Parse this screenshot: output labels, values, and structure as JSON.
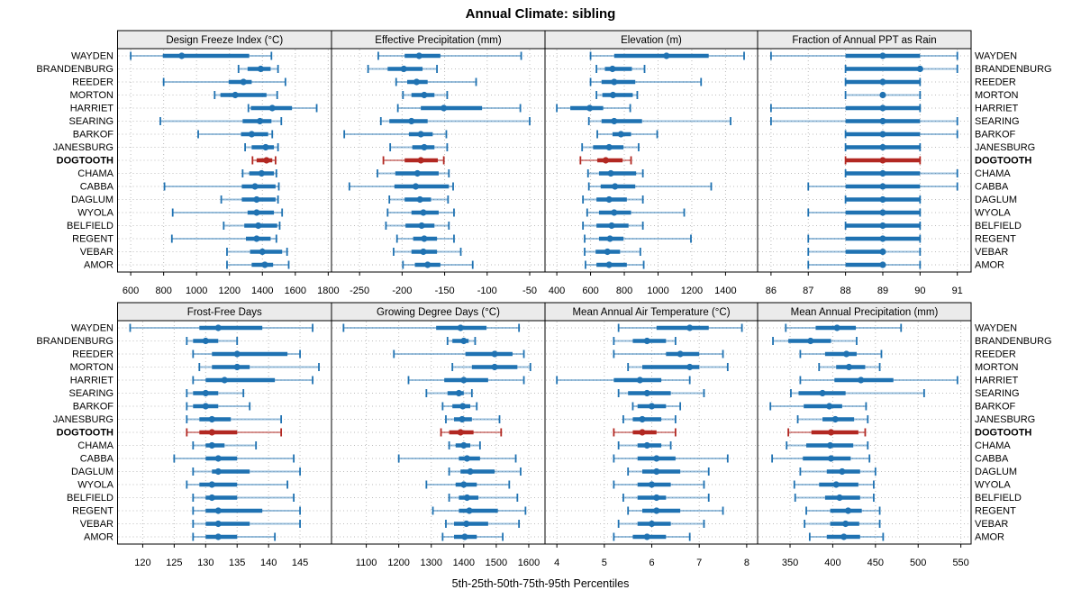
{
  "title": "Annual Climate: sibling",
  "footer": "5th-25th-50th-75th-95th Percentiles",
  "colors": {
    "series": "#1f72b2",
    "series_light": "rgba(31,114,178,0.45)",
    "highlight": "#b22822",
    "highlight_light": "rgba(178,40,34,0.5)",
    "strip_bg": "#ebebeb",
    "panel_border": "#000000",
    "grid": "#bdbdbd",
    "text": "#000000"
  },
  "chart_data": {
    "type": "dotplot",
    "subtype": "trellis-percentile-whiskers",
    "layout": {
      "rows": 2,
      "cols": 4,
      "grid": "dotted",
      "station_labels": "both-sides"
    },
    "percentiles": [
      "5th",
      "25th",
      "50th",
      "75th",
      "95th"
    ],
    "highlight_station": "DOGTOOTH",
    "stations": [
      "WAYDEN",
      "BRANDENBURG",
      "REEDER",
      "MORTON",
      "HARRIET",
      "SEARING",
      "BARKOF",
      "JANESBURG",
      "DOGTOOTH",
      "CHAMA",
      "CABBA",
      "DAGLUM",
      "WYOLA",
      "BELFIELD",
      "REGENT",
      "VEBAR",
      "AMOR"
    ],
    "panels": [
      {
        "title": "Design Freeze Index (°C)",
        "row": 0,
        "col": 0,
        "xlim": [
          520,
          1820
        ],
        "ticks": [
          600,
          800,
          1000,
          1200,
          1400,
          1600,
          1800
        ],
        "values": [
          [
            600,
            795,
            910,
            1320,
            1455
          ],
          [
            1255,
            1310,
            1390,
            1450,
            1495
          ],
          [
            800,
            1195,
            1285,
            1335,
            1540
          ],
          [
            1110,
            1145,
            1235,
            1425,
            1490
          ],
          [
            1315,
            1330,
            1460,
            1580,
            1730
          ],
          [
            780,
            1280,
            1385,
            1455,
            1515
          ],
          [
            1010,
            1270,
            1335,
            1435,
            1460
          ],
          [
            1295,
            1335,
            1420,
            1470,
            1495
          ],
          [
            1340,
            1365,
            1425,
            1460,
            1480
          ],
          [
            1280,
            1320,
            1395,
            1470,
            1485
          ],
          [
            805,
            1275,
            1355,
            1480,
            1500
          ],
          [
            1150,
            1275,
            1365,
            1480,
            1495
          ],
          [
            855,
            1310,
            1365,
            1470,
            1520
          ],
          [
            1165,
            1290,
            1375,
            1490,
            1505
          ],
          [
            850,
            1300,
            1365,
            1450,
            1485
          ],
          [
            1185,
            1325,
            1400,
            1520,
            1550
          ],
          [
            1185,
            1335,
            1415,
            1465,
            1560
          ]
        ]
      },
      {
        "title": "Effective Precipitation (mm)",
        "row": 0,
        "col": 1,
        "xlim": [
          -283,
          -32
        ],
        "ticks": [
          -250,
          -200,
          -150,
          -100,
          -50
        ],
        "values": [
          [
            -228,
            -197,
            -180,
            -155,
            -60
          ],
          [
            -240,
            -217,
            -198,
            -176,
            -159
          ],
          [
            -207,
            -194,
            -183,
            -170,
            -113
          ],
          [
            -199,
            -189,
            -174,
            -162,
            -147
          ],
          [
            -205,
            -178,
            -151,
            -106,
            -61
          ],
          [
            -225,
            -215,
            -189,
            -170,
            -50
          ],
          [
            -268,
            -192,
            -178,
            -164,
            -148
          ],
          [
            -214,
            -188,
            -174,
            -162,
            -147
          ],
          [
            -222,
            -197,
            -178,
            -158,
            -151
          ],
          [
            -229,
            -208,
            -182,
            -157,
            -145
          ],
          [
            -262,
            -209,
            -184,
            -145,
            -140
          ],
          [
            -215,
            -197,
            -179,
            -166,
            -146
          ],
          [
            -217,
            -189,
            -175,
            -157,
            -139
          ],
          [
            -219,
            -196,
            -177,
            -162,
            -145
          ],
          [
            -206,
            -187,
            -174,
            -159,
            -139
          ],
          [
            -210,
            -189,
            -175,
            -159,
            -131
          ],
          [
            -199,
            -185,
            -170,
            -155,
            -117
          ]
        ]
      },
      {
        "title": "Elevation (m)",
        "row": 0,
        "col": 2,
        "xlim": [
          330,
          1590
        ],
        "ticks": [
          400,
          600,
          800,
          1000,
          1200,
          1400
        ],
        "values": [
          [
            600,
            740,
            1050,
            1300,
            1510
          ],
          [
            635,
            685,
            730,
            845,
            920
          ],
          [
            600,
            665,
            740,
            865,
            1255
          ],
          [
            635,
            670,
            733,
            850,
            877
          ],
          [
            400,
            480,
            595,
            675,
            835
          ],
          [
            590,
            665,
            740,
            905,
            1430
          ],
          [
            640,
            730,
            780,
            840,
            995
          ],
          [
            550,
            615,
            710,
            795,
            885
          ],
          [
            540,
            640,
            690,
            790,
            840
          ],
          [
            585,
            650,
            720,
            870,
            910
          ],
          [
            590,
            660,
            745,
            865,
            1315
          ],
          [
            555,
            635,
            710,
            815,
            910
          ],
          [
            580,
            650,
            740,
            840,
            1155
          ],
          [
            555,
            635,
            725,
            825,
            910
          ],
          [
            565,
            650,
            715,
            795,
            1195
          ],
          [
            565,
            630,
            700,
            775,
            895
          ],
          [
            570,
            635,
            710,
            815,
            915
          ]
        ]
      },
      {
        "title": "Fraction of Annual PPT as Rain",
        "row": 0,
        "col": 3,
        "xlim": [
          85.64,
          91.37
        ],
        "ticks": [
          86,
          87,
          88,
          89,
          90,
          91
        ],
        "values": [
          [
            86,
            88,
            89,
            90,
            91
          ],
          [
            88,
            88,
            90,
            90,
            91
          ],
          [
            88,
            88,
            89,
            90,
            90
          ],
          [
            88,
            89,
            89,
            89,
            90
          ],
          [
            86,
            88,
            89,
            90,
            90
          ],
          [
            86,
            88,
            89,
            90,
            91
          ],
          [
            88,
            88,
            89,
            90,
            91
          ],
          [
            88,
            88,
            89,
            90,
            90
          ],
          [
            88,
            88,
            89,
            90,
            90
          ],
          [
            88,
            88,
            89,
            90,
            91
          ],
          [
            87,
            88,
            89,
            90,
            91
          ],
          [
            88,
            88,
            89,
            90,
            90
          ],
          [
            87,
            88,
            89,
            90,
            90
          ],
          [
            88,
            88,
            89,
            90,
            90
          ],
          [
            87,
            88,
            89,
            90,
            90
          ],
          [
            87,
            88,
            89,
            89,
            90
          ],
          [
            87,
            88,
            89,
            89,
            90
          ]
        ]
      },
      {
        "title": "Frost-Free Days",
        "row": 1,
        "col": 0,
        "xlim": [
          116,
          150
        ],
        "ticks": [
          120,
          125,
          130,
          135,
          140,
          145
        ],
        "values": [
          [
            118,
            129,
            132,
            139,
            147
          ],
          [
            127,
            128,
            130,
            132,
            135
          ],
          [
            128,
            131,
            135,
            143,
            145
          ],
          [
            129,
            131,
            135,
            137,
            148
          ],
          [
            128,
            130,
            133,
            141,
            147
          ],
          [
            127,
            128,
            130,
            132,
            136
          ],
          [
            127,
            128,
            130,
            132,
            137
          ],
          [
            127,
            129,
            131,
            134,
            142
          ],
          [
            127,
            129,
            131,
            135,
            142
          ],
          [
            128,
            130,
            131,
            133,
            138
          ],
          [
            125,
            130,
            132,
            135,
            144
          ],
          [
            128,
            131,
            132,
            137,
            145
          ],
          [
            127,
            129,
            131,
            135,
            143
          ],
          [
            128,
            130,
            131,
            135,
            144
          ],
          [
            128,
            130,
            132,
            139,
            145
          ],
          [
            128,
            130,
            132,
            137,
            145
          ],
          [
            128,
            130,
            132,
            135,
            141
          ]
        ]
      },
      {
        "title": "Growing Degree Days (°C)",
        "row": 1,
        "col": 1,
        "xlim": [
          993,
          1650
        ],
        "ticks": [
          1100,
          1200,
          1300,
          1400,
          1500,
          1600
        ],
        "values": [
          [
            1030,
            1315,
            1390,
            1470,
            1570
          ],
          [
            1350,
            1365,
            1400,
            1415,
            1435
          ],
          [
            1185,
            1405,
            1495,
            1550,
            1585
          ],
          [
            1365,
            1425,
            1495,
            1565,
            1605
          ],
          [
            1230,
            1340,
            1400,
            1475,
            1585
          ],
          [
            1285,
            1350,
            1385,
            1400,
            1425
          ],
          [
            1335,
            1365,
            1397,
            1420,
            1440
          ],
          [
            1345,
            1370,
            1395,
            1425,
            1510
          ],
          [
            1330,
            1355,
            1390,
            1430,
            1515
          ],
          [
            1355,
            1375,
            1400,
            1420,
            1450
          ],
          [
            1200,
            1385,
            1410,
            1450,
            1560
          ],
          [
            1355,
            1390,
            1420,
            1495,
            1575
          ],
          [
            1285,
            1375,
            1400,
            1440,
            1540
          ],
          [
            1355,
            1385,
            1410,
            1445,
            1565
          ],
          [
            1305,
            1385,
            1417,
            1505,
            1590
          ],
          [
            1345,
            1370,
            1408,
            1475,
            1570
          ],
          [
            1335,
            1370,
            1403,
            1440,
            1520
          ]
        ]
      },
      {
        "title": "Mean Annual Air Temperature (°C)",
        "row": 1,
        "col": 2,
        "xlim": [
          3.75,
          8.23
        ],
        "ticks": [
          4,
          5,
          6,
          7,
          8
        ],
        "values": [
          [
            5.3,
            6.1,
            6.8,
            7.2,
            7.9
          ],
          [
            5.2,
            5.6,
            5.9,
            6.3,
            6.5
          ],
          [
            5.2,
            6.3,
            6.6,
            7.0,
            7.5
          ],
          [
            5.5,
            5.8,
            6.8,
            7.0,
            7.6
          ],
          [
            4.0,
            5.2,
            5.75,
            6.2,
            6.8
          ],
          [
            5.3,
            5.5,
            5.9,
            6.4,
            7.1
          ],
          [
            5.6,
            5.7,
            6.0,
            6.3,
            6.6
          ],
          [
            5.4,
            5.6,
            5.8,
            6.2,
            6.5
          ],
          [
            5.2,
            5.6,
            5.8,
            6.1,
            6.5
          ],
          [
            5.3,
            5.7,
            5.9,
            6.2,
            6.4
          ],
          [
            5.2,
            5.7,
            6.1,
            6.5,
            7.6
          ],
          [
            5.5,
            5.8,
            6.1,
            6.6,
            7.2
          ],
          [
            5.2,
            5.7,
            6.0,
            6.4,
            7.1
          ],
          [
            5.4,
            5.7,
            6.1,
            6.3,
            7.2
          ],
          [
            5.5,
            5.8,
            6.1,
            6.6,
            7.5
          ],
          [
            5.3,
            5.7,
            6.0,
            6.4,
            7.1
          ],
          [
            5.2,
            5.6,
            5.9,
            6.3,
            6.8
          ]
        ]
      },
      {
        "title": "Mean Annual Precipitation (mm)",
        "row": 1,
        "col": 3,
        "xlim": [
          312,
          562
        ],
        "ticks": [
          350,
          400,
          450,
          500,
          550
        ],
        "values": [
          [
            345,
            380,
            405,
            427,
            480
          ],
          [
            330,
            348,
            374,
            398,
            428
          ],
          [
            362,
            391,
            416,
            428,
            457
          ],
          [
            384,
            404,
            419,
            438,
            455
          ],
          [
            362,
            402,
            433,
            471,
            546
          ],
          [
            351,
            360,
            388,
            415,
            507
          ],
          [
            327,
            366,
            396,
            411,
            439
          ],
          [
            359,
            388,
            403,
            425,
            441
          ],
          [
            348,
            375,
            398,
            430,
            438
          ],
          [
            346,
            369,
            397,
            424,
            441
          ],
          [
            329,
            365,
            398,
            421,
            443
          ],
          [
            362,
            393,
            411,
            432,
            450
          ],
          [
            355,
            384,
            404,
            430,
            448
          ],
          [
            356,
            391,
            408,
            432,
            448
          ],
          [
            369,
            397,
            418,
            434,
            455
          ],
          [
            367,
            397,
            415,
            431,
            455
          ],
          [
            373,
            393,
            413,
            432,
            459
          ]
        ]
      }
    ]
  }
}
